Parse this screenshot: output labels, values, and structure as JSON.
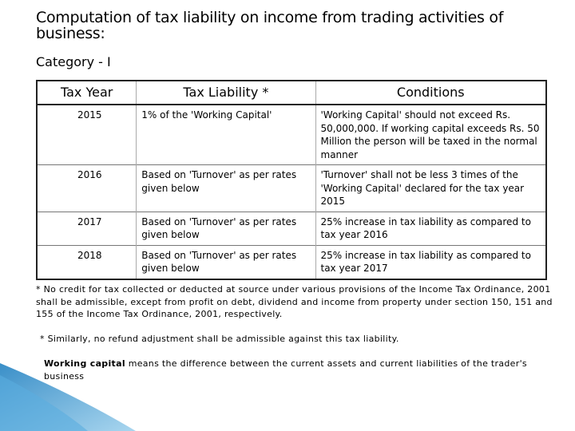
{
  "title": "Computation of tax liability on income from trading activities of business:",
  "category": "Category - I",
  "table": {
    "header": [
      "Tax Year",
      "Tax Liability *",
      "Conditions"
    ],
    "rows": [
      [
        "2015",
        "1% of the 'Working Capital'",
        "'Working Capital' should not exceed Rs. 50,000,000. If working capital exceeds Rs. 50 Million the person will be taxed in the normal manner"
      ],
      [
        "2016",
        "Based on 'Turnover' as per rates given below",
        "'Turnover' shall not be less 3 times of the 'Working Capital' declared for the tax year 2015"
      ],
      [
        "2017",
        "Based on 'Turnover' as per rates given below",
        "25% increase in tax liability as compared to tax year 2016"
      ],
      [
        "2018",
        "Based on 'Turnover' as per rates given below",
        "25% increase in tax liability as compared to tax year 2017"
      ]
    ]
  },
  "notes": [
    "* No credit for tax collected or deducted at source under various provisions of the Income Tax Ordinance, 2001 shall be admissible, except from profit on debt, dividend and income from property under section 150, 151 and 155 of the Income Tax Ordinance, 2001, respectively.",
    "* Similarly, no refund adjustment shall be admissible against this tax liability."
  ],
  "definition": {
    "term": "Working capital",
    "text": "means the difference between the current assets and current liabilities of the trader's business"
  }
}
